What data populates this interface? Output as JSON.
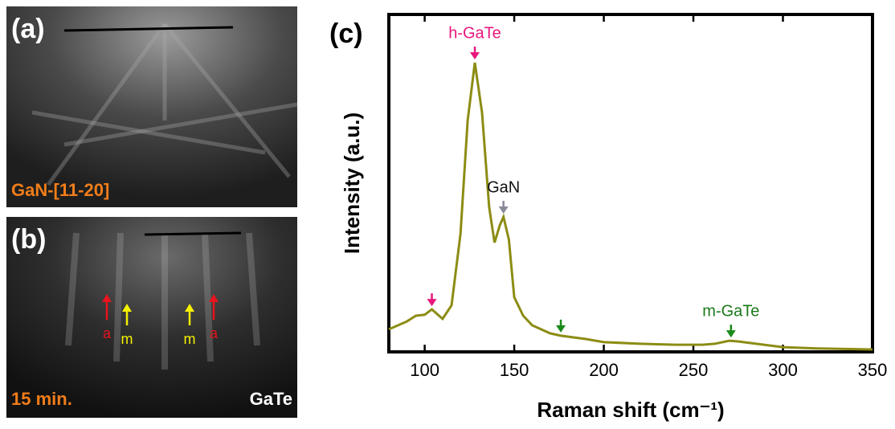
{
  "panels": {
    "a": {
      "label": "(a)",
      "caption": "GaN-[11-20]"
    },
    "b": {
      "label": "(b)",
      "caption": "15 min.",
      "material": "GaTe",
      "arrows": [
        {
          "text": "a",
          "color": "#e8141e"
        },
        {
          "text": "m",
          "color": "#f5f000"
        },
        {
          "text": "m",
          "color": "#f5f000"
        },
        {
          "text": "a",
          "color": "#e8141e"
        }
      ]
    }
  },
  "chart_data": {
    "type": "line",
    "panel_label": "(c)",
    "x_label": "Raman shift (cm⁻¹)",
    "y_label": "Intensity (a.u.)",
    "x": [
      80,
      90,
      95,
      100,
      104,
      110,
      115,
      120,
      124,
      128,
      132,
      136,
      139,
      142,
      144,
      147,
      150,
      155,
      160,
      170,
      176,
      190,
      200,
      220,
      240,
      255,
      262,
      270,
      275,
      285,
      300,
      320,
      350
    ],
    "series": [
      {
        "color": "#8c8c14",
        "values": [
          6.7,
          9,
          10.7,
          11,
          12.6,
          9.8,
          13.8,
          35,
          68.6,
          85.7,
          71,
          42.9,
          32.4,
          37.6,
          40,
          33.3,
          16.2,
          10.7,
          7.9,
          5.5,
          4.8,
          3.8,
          2.9,
          2.4,
          2.1,
          2.1,
          2.4,
          3.3,
          3.1,
          2.4,
          1.4,
          1.0,
          0.7
        ]
      }
    ],
    "xlim": [
      80,
      350
    ],
    "ylim": [
      0,
      100
    ],
    "xticks": [
      100,
      150,
      200,
      250,
      300,
      350
    ],
    "annotations": [
      {
        "x": 128,
        "y": 85.7,
        "text": "h-GaTe",
        "color": "#e8177d",
        "arrow_color": "#e8177d"
      },
      {
        "x": 144,
        "y": 40,
        "text": "GaN",
        "color": "#111111",
        "arrow_color": "#8a8a9a"
      },
      {
        "x": 104,
        "y": 12.6,
        "arrow_color": "#e8177d"
      },
      {
        "x": 176,
        "y": 4.8,
        "arrow_color": "#1a8a1a"
      },
      {
        "x": 271,
        "y": 3.3,
        "text": "m-GaTe",
        "color": "#1a7a1a",
        "arrow_color": "#1a8a1a"
      }
    ]
  }
}
